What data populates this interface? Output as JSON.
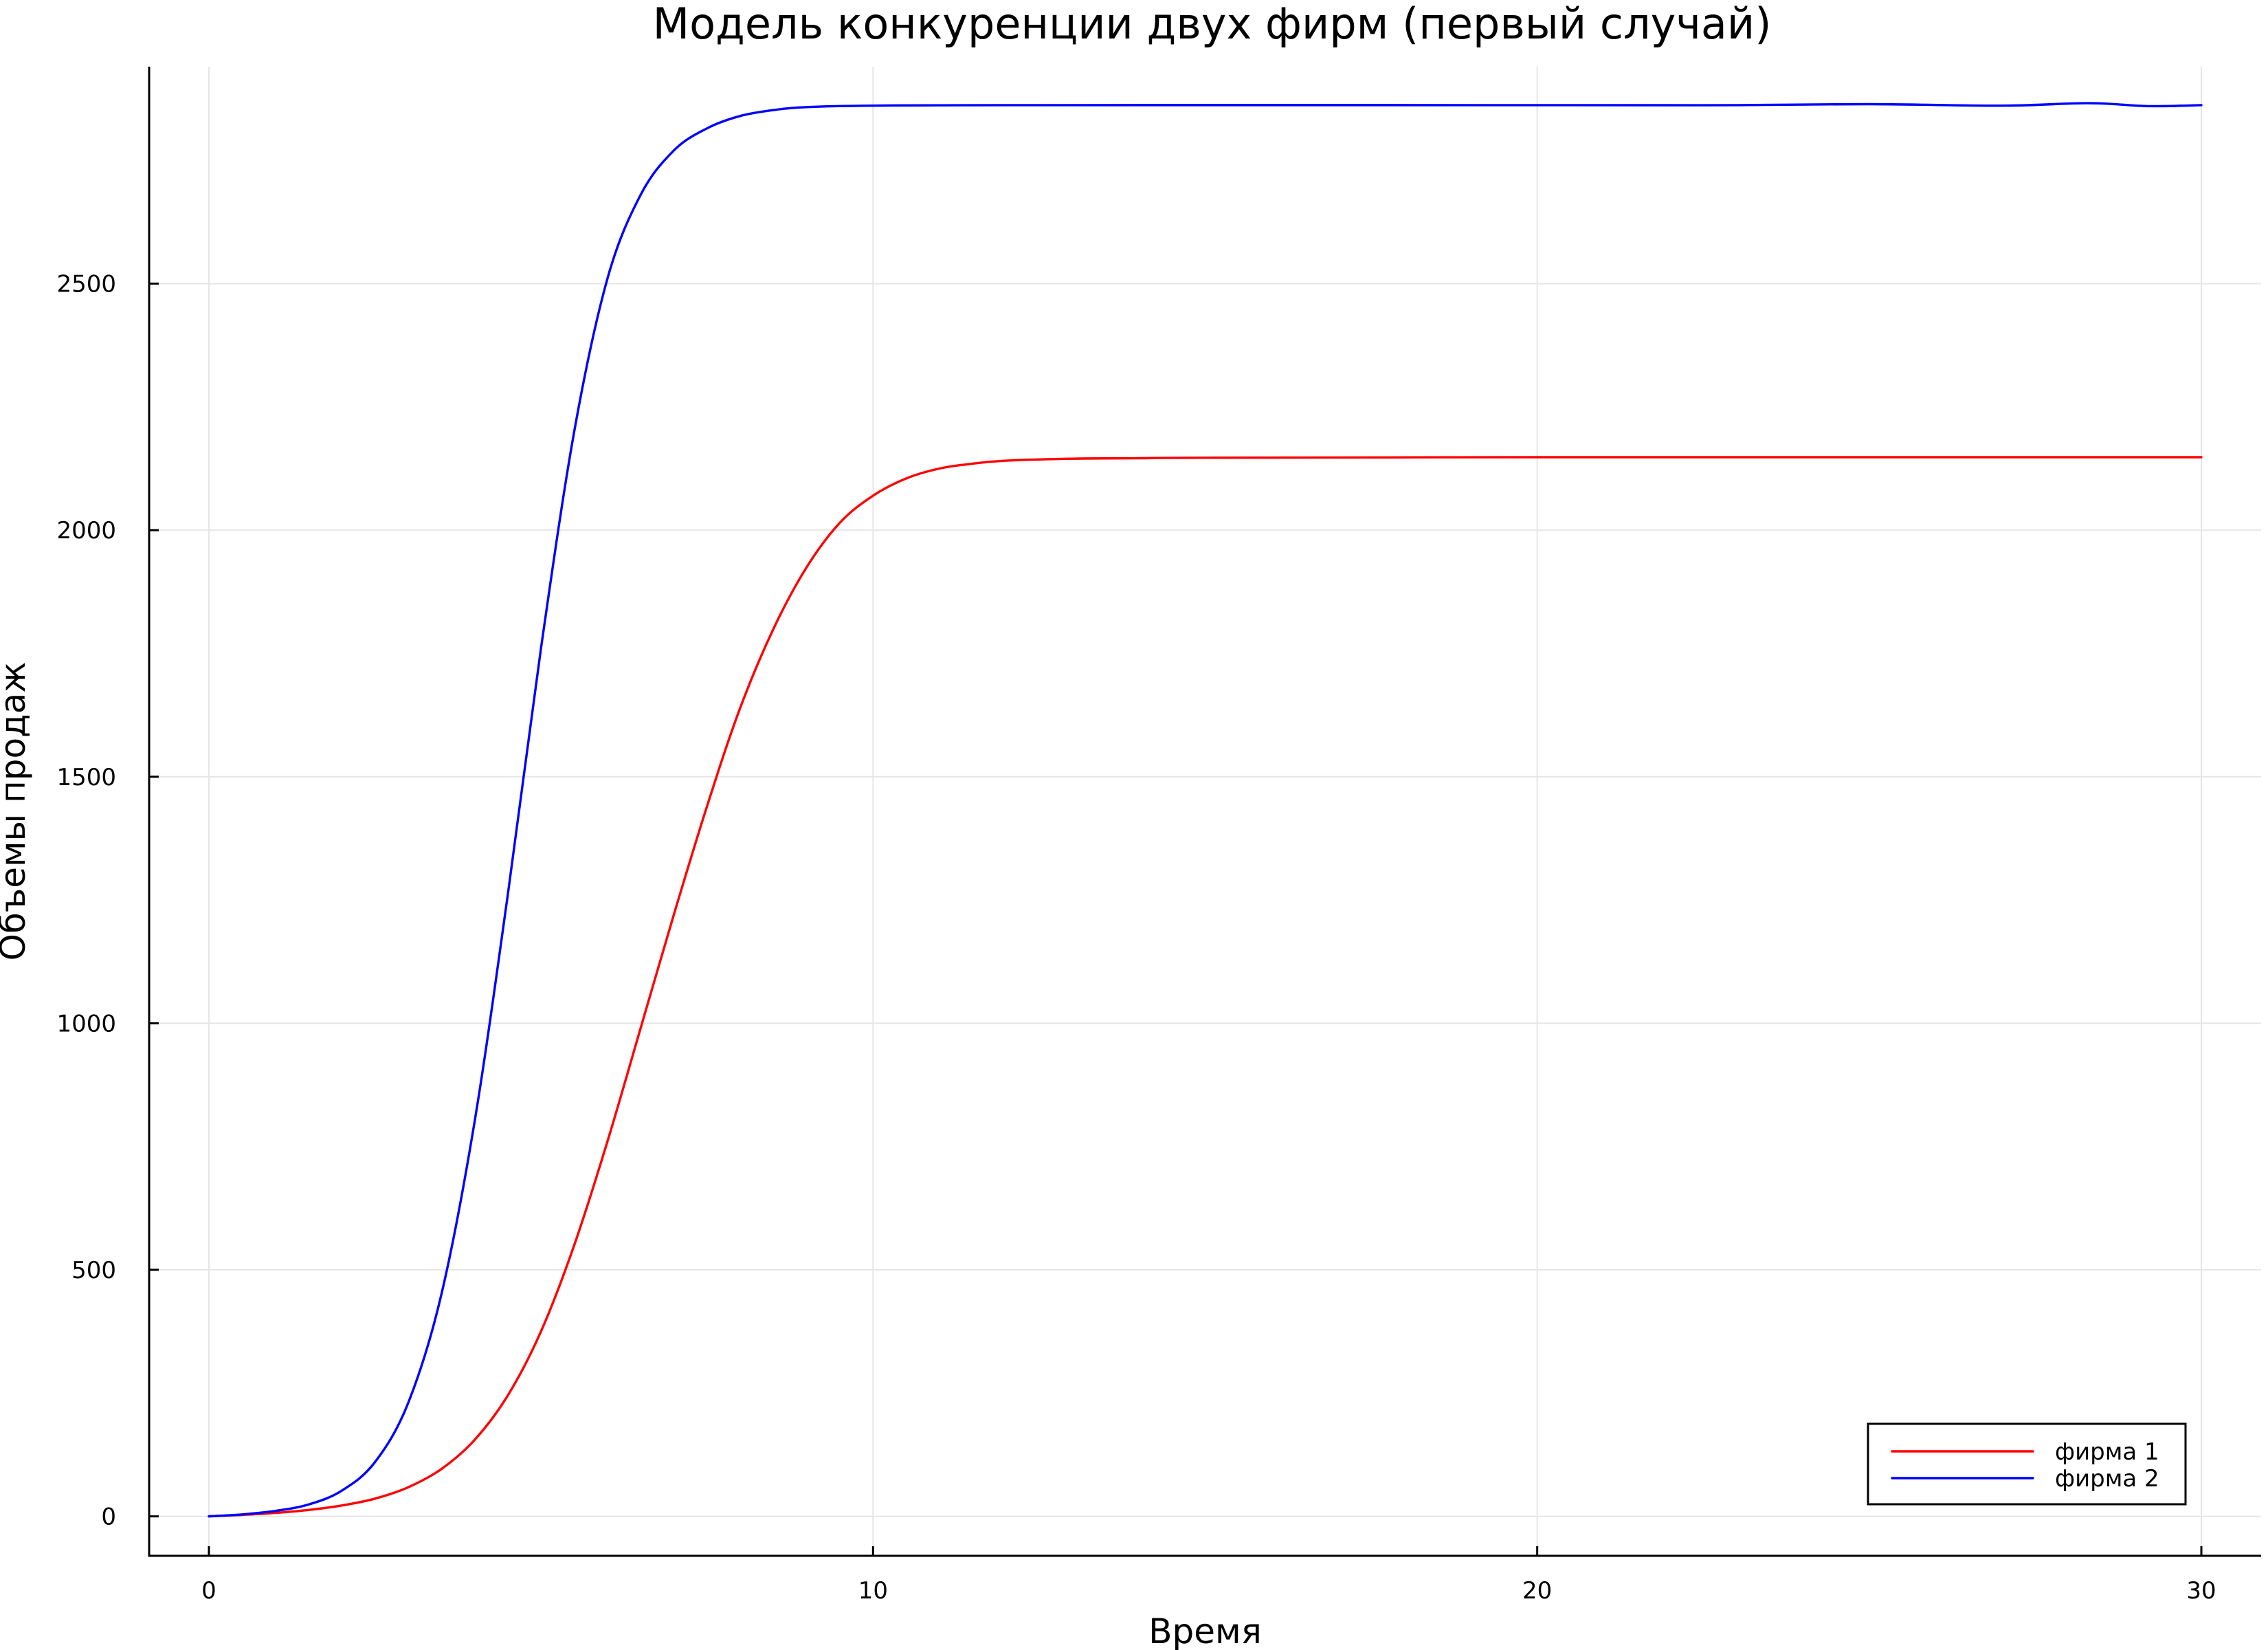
{
  "chart_data": {
    "type": "line",
    "title": "Модель конкуренции двух фирм (первый случай)",
    "xlabel": "Время",
    "ylabel": "Объемы продаж",
    "xlim": [
      -0.9,
      30.9
    ],
    "ylim": [
      -80,
      2940
    ],
    "xticks": [
      0,
      10,
      20,
      30
    ],
    "yticks": [
      0,
      500,
      1000,
      1500,
      2000,
      2500
    ],
    "grid": true,
    "legend_position": "bottom-right",
    "series": [
      {
        "name": "фирма 1",
        "color": "#ff0000",
        "points": [
          [
            0,
            0
          ],
          [
            0.5,
            3
          ],
          [
            1,
            7
          ],
          [
            1.5,
            13
          ],
          [
            2,
            22
          ],
          [
            2.5,
            36
          ],
          [
            3,
            59
          ],
          [
            3.5,
            96
          ],
          [
            4,
            155
          ],
          [
            4.5,
            245
          ],
          [
            5,
            375
          ],
          [
            5.5,
            550
          ],
          [
            6,
            760
          ],
          [
            6.5,
            990
          ],
          [
            7,
            1220
          ],
          [
            7.5,
            1440
          ],
          [
            8,
            1640
          ],
          [
            8.5,
            1800
          ],
          [
            9,
            1925
          ],
          [
            9.5,
            2015
          ],
          [
            10,
            2070
          ],
          [
            10.5,
            2105
          ],
          [
            11,
            2125
          ],
          [
            11.5,
            2135
          ],
          [
            12,
            2141
          ],
          [
            13,
            2145
          ],
          [
            14,
            2146
          ],
          [
            15,
            2147
          ],
          [
            20,
            2148
          ],
          [
            25,
            2148
          ],
          [
            30,
            2148
          ]
        ]
      },
      {
        "name": "фирма 2",
        "color": "#0000ff",
        "points": [
          [
            0,
            0
          ],
          [
            0.5,
            4
          ],
          [
            1,
            11
          ],
          [
            1.5,
            24
          ],
          [
            2,
            52
          ],
          [
            2.5,
            110
          ],
          [
            3,
            230
          ],
          [
            3.5,
            450
          ],
          [
            4,
            800
          ],
          [
            4.5,
            1260
          ],
          [
            5,
            1760
          ],
          [
            5.5,
            2200
          ],
          [
            6,
            2510
          ],
          [
            6.5,
            2680
          ],
          [
            7,
            2770
          ],
          [
            7.5,
            2815
          ],
          [
            8,
            2840
          ],
          [
            8.5,
            2852
          ],
          [
            9,
            2858
          ],
          [
            10,
            2861
          ],
          [
            12,
            2862
          ],
          [
            20,
            2862
          ],
          [
            23,
            2862
          ],
          [
            25,
            2864
          ],
          [
            27,
            2861
          ],
          [
            28.3,
            2866
          ],
          [
            29.2,
            2860
          ],
          [
            30,
            2862
          ]
        ]
      }
    ]
  }
}
